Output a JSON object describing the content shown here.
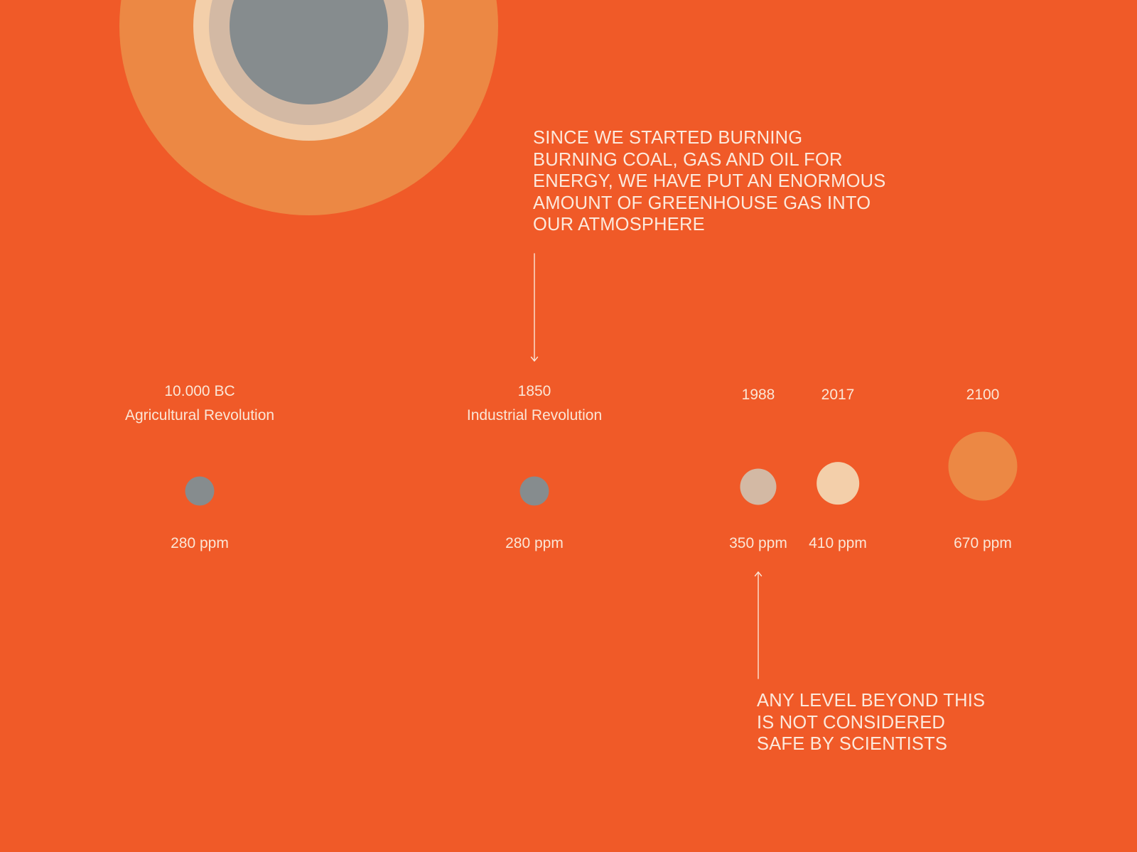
{
  "callouts": {
    "top": {
      "lines": [
        "SINCE WE STARTED BURNING",
        "BURNING COAL, GAS AND OIL FOR",
        "ENERGY, WE HAVE PUT AN ENORMOUS",
        "AMOUNT OF GREENHOUSE GAS INTO",
        "OUR ATMOSPHERE"
      ]
    },
    "bottom": {
      "lines": [
        "ANY LEVEL BEYOND THIS",
        "IS NOT CONSIDERED",
        "SAFE BY SCIENTISTS"
      ]
    }
  },
  "timeline": [
    {
      "year": "10.000 BC",
      "event": "Agricultural Revolution",
      "value": "280 ppm",
      "ppm": 280,
      "color": "#868C8E"
    },
    {
      "year": "1850",
      "event": "Industrial Revolution",
      "value": "280 ppm",
      "ppm": 280,
      "color": "#868C8E"
    },
    {
      "year": "1988",
      "event": "",
      "value": "350 ppm",
      "ppm": 350,
      "color": "#D3B9A4"
    },
    {
      "year": "2017",
      "event": "",
      "value": "410 ppm",
      "ppm": 410,
      "color": "#F3CFAA"
    },
    {
      "year": "2100",
      "event": "",
      "value": "670 ppm",
      "ppm": 670,
      "color": "#EC8844"
    }
  ],
  "colors": {
    "background": "#F05A28",
    "text": "#FBE6D6",
    "ring_outer": "#EC8844",
    "ring_cream": "#F3CFAA",
    "ring_tan": "#D3B9A4",
    "ring_gray": "#868C8E"
  }
}
